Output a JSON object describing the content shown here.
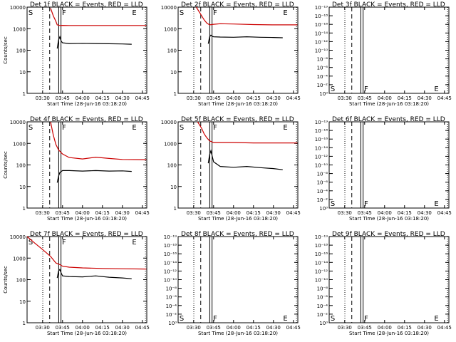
{
  "chart_data": [
    {
      "type": "line",
      "title": "Det 1f BLACK = Events, RED = LLD",
      "ylabel": "Counts/sec",
      "xlabel": "Start Time (28-Jun-16 03:18:20)",
      "xticks": [
        "03:30",
        "03:45",
        "04:00",
        "04:15",
        "04:30",
        "04:45"
      ],
      "yscale": "log",
      "yticks": [
        "1",
        "10",
        "100",
        "1000",
        "10000"
      ],
      "ylim": [
        1,
        10000
      ],
      "markers": [
        "S",
        "F",
        "E"
      ],
      "series": [
        {
          "name": "Events",
          "color": "#000000",
          "x": [
            "03:41",
            "03:42",
            "03:43",
            "03:44",
            "03:45",
            "03:50",
            "04:00",
            "04:10",
            "04:20",
            "04:30",
            "04:37"
          ],
          "y": [
            120,
            300,
            420,
            260,
            220,
            205,
            210,
            205,
            200,
            195,
            190
          ]
        },
        {
          "name": "LLD",
          "color": "#cc0000",
          "x": [
            "03:36",
            "03:38",
            "03:40",
            "03:41",
            "03:43",
            "03:45",
            "03:50",
            "04:00",
            "04:15",
            "04:30",
            "04:48"
          ],
          "y": [
            9000,
            4000,
            2200,
            1500,
            1400,
            1420,
            1400,
            1400,
            1400,
            1400,
            1400
          ]
        }
      ]
    },
    {
      "type": "line",
      "title": "Det 2f BLACK = Events, RED = LLD",
      "ylabel": "",
      "xlabel": "Start Time (28-Jun-16 03:18:20)",
      "xticks": [
        "03:30",
        "03:45",
        "04:00",
        "04:15",
        "04:30",
        "04:45"
      ],
      "yscale": "log",
      "yticks": [
        "1",
        "10",
        "100",
        "1000",
        "10000"
      ],
      "ylim": [
        1,
        10000
      ],
      "markers": [
        "S",
        "F",
        "E"
      ],
      "series": [
        {
          "name": "Events",
          "color": "#000000",
          "x": [
            "03:41",
            "03:42",
            "03:43",
            "03:44",
            "03:45",
            "03:50",
            "04:00",
            "04:10",
            "04:20",
            "04:30",
            "04:37"
          ],
          "y": [
            200,
            420,
            500,
            440,
            420,
            410,
            400,
            420,
            400,
            390,
            380
          ]
        },
        {
          "name": "LLD",
          "color": "#cc0000",
          "x": [
            "03:32",
            "03:35",
            "03:38",
            "03:40",
            "03:42",
            "03:45",
            "03:50",
            "04:00",
            "04:15",
            "04:30",
            "04:48"
          ],
          "y": [
            10000,
            5000,
            2500,
            1800,
            1500,
            1600,
            1700,
            1650,
            1550,
            1500,
            1500
          ]
        }
      ]
    },
    {
      "type": "line",
      "title": "Det 3f BLACK = Events, RED = LLD",
      "ylabel": "",
      "xlabel": "Start Time (28-Jun-16 03:18:20)",
      "xticks": [
        "03:30",
        "03:45",
        "04:00",
        "04:15",
        "04:30",
        "04:45"
      ],
      "yscale": "log",
      "yticks": [
        "10⁰",
        "10⁻²",
        "10⁻⁴",
        "10⁻⁶",
        "10⁻⁸",
        "10⁻¹⁰",
        "10⁻¹²",
        "10⁻¹⁴",
        "10⁻¹⁶",
        "10⁻¹⁸",
        "10⁻¹⁹"
      ],
      "markers": [
        "S",
        "F",
        "E"
      ],
      "series": []
    },
    {
      "type": "line",
      "title": "Det 4f BLACK = Events, RED = LLD",
      "ylabel": "Counts/sec",
      "xlabel": "Start Time (28-Jun-16 03:18:20)",
      "xticks": [
        "03:30",
        "03:45",
        "04:00",
        "04:15",
        "04:30",
        "04:45"
      ],
      "yscale": "log",
      "yticks": [
        "1",
        "10",
        "100",
        "1000",
        "10000"
      ],
      "ylim": [
        1,
        10000
      ],
      "markers": [
        "S",
        "F",
        "E"
      ],
      "series": [
        {
          "name": "Events",
          "color": "#000000",
          "x": [
            "03:41",
            "03:42",
            "03:43",
            "03:45",
            "03:50",
            "04:00",
            "04:10",
            "04:20",
            "04:30",
            "04:37"
          ],
          "y": [
            15,
            30,
            45,
            55,
            55,
            52,
            55,
            52,
            53,
            50
          ]
        },
        {
          "name": "LLD",
          "color": "#cc0000",
          "x": [
            "03:36",
            "03:38",
            "03:40",
            "03:42",
            "03:45",
            "03:50",
            "04:00",
            "04:10",
            "04:20",
            "04:30",
            "04:48"
          ],
          "y": [
            10000,
            2500,
            900,
            500,
            320,
            220,
            190,
            230,
            200,
            180,
            175
          ]
        }
      ]
    },
    {
      "type": "line",
      "title": "Det 5f BLACK = Events, RED = LLD",
      "ylabel": "",
      "xlabel": "Start Time (28-Jun-16 03:18:20)",
      "xticks": [
        "03:30",
        "03:45",
        "04:00",
        "04:15",
        "04:30",
        "04:45"
      ],
      "yscale": "log",
      "yticks": [
        "1",
        "10",
        "100",
        "1000",
        "10000"
      ],
      "ylim": [
        1,
        10000
      ],
      "markers": [
        "S",
        "F",
        "E"
      ],
      "series": [
        {
          "name": "Events",
          "color": "#000000",
          "x": [
            "03:41",
            "03:42",
            "03:43",
            "03:44",
            "03:45",
            "03:50",
            "04:00",
            "04:10",
            "04:20",
            "04:30",
            "04:37"
          ],
          "y": [
            120,
            300,
            450,
            250,
            140,
            85,
            78,
            85,
            75,
            68,
            60
          ]
        },
        {
          "name": "LLD",
          "color": "#cc0000",
          "x": [
            "03:33",
            "03:36",
            "03:38",
            "03:40",
            "03:42",
            "03:45",
            "03:50",
            "04:00",
            "04:15",
            "04:30",
            "04:48"
          ],
          "y": [
            10000,
            5000,
            2700,
            1800,
            1300,
            1100,
            1100,
            1100,
            1050,
            1050,
            1050
          ]
        }
      ]
    },
    {
      "type": "line",
      "title": "Det 6f BLACK = Events, RED = LLD",
      "ylabel": "",
      "xlabel": "Start Time (28-Jun-16 03:18:20)",
      "xticks": [
        "03:30",
        "03:45",
        "04:00",
        "04:15",
        "04:30",
        "04:45"
      ],
      "yscale": "log",
      "yticks": [
        "10⁰",
        "10⁻²",
        "10⁻⁴",
        "10⁻⁶",
        "10⁻⁸",
        "10⁻¹⁰",
        "10⁻¹²",
        "10⁻¹⁴",
        "10⁻¹⁶",
        "10⁻¹⁸",
        "10⁻¹⁹"
      ],
      "markers": [
        "S",
        "F",
        "E"
      ],
      "series": []
    },
    {
      "type": "line",
      "title": "Det 7f BLACK = Events, RED = LLD",
      "ylabel": "Counts/sec",
      "xlabel": "Start Time (28-Jun-16 03:18:20)",
      "xticks": [
        "03:30",
        "03:45",
        "04:00",
        "04:15",
        "04:30",
        "04:45"
      ],
      "yscale": "log",
      "yticks": [
        "1",
        "10",
        "100",
        "1000",
        "10000"
      ],
      "ylim": [
        1,
        10000
      ],
      "markers": [
        "S",
        "F",
        "E"
      ],
      "series": [
        {
          "name": "Events",
          "color": "#000000",
          "x": [
            "03:41",
            "03:42",
            "03:43",
            "03:44",
            "03:45",
            "03:50",
            "04:00",
            "04:10",
            "04:20",
            "04:30",
            "04:37"
          ],
          "y": [
            120,
            250,
            300,
            200,
            150,
            140,
            135,
            150,
            130,
            120,
            110
          ]
        },
        {
          "name": "LLD",
          "color": "#cc0000",
          "x": [
            "03:18",
            "03:24",
            "03:30",
            "03:36",
            "03:40",
            "03:43",
            "03:45",
            "03:50",
            "04:00",
            "04:15",
            "04:30",
            "04:48"
          ],
          "y": [
            10000,
            5000,
            2500,
            1200,
            600,
            500,
            420,
            380,
            350,
            330,
            320,
            310
          ]
        }
      ]
    },
    {
      "type": "line",
      "title": "Det 8f BLACK = Events, RED = LLD",
      "ylabel": "",
      "xlabel": "Start Time (28-Jun-16 03:18:20)",
      "xticks": [
        "03:30",
        "03:45",
        "04:00",
        "04:15",
        "04:30",
        "04:45"
      ],
      "yscale": "log",
      "yticks": [
        "10⁰",
        "10⁻²",
        "10⁻⁴",
        "10⁻⁶",
        "10⁻⁸",
        "10⁻¹⁰",
        "10⁻¹²",
        "10⁻¹⁴",
        "10⁻¹⁶",
        "10⁻¹⁸",
        "10⁻¹⁹"
      ],
      "markers": [
        "S",
        "F",
        "E"
      ],
      "series": []
    },
    {
      "type": "line",
      "title": "Det 9f BLACK = Events, RED = LLD",
      "ylabel": "",
      "xlabel": "Start Time (28-Jun-16 03:18:20)",
      "xticks": [
        "03:30",
        "03:45",
        "04:00",
        "04:15",
        "04:30",
        "04:45"
      ],
      "yscale": "log",
      "yticks": [
        "10⁰",
        "10⁻²",
        "10⁻⁴",
        "10⁻⁶",
        "10⁻⁸",
        "10⁻¹⁰",
        "10⁻¹²",
        "10⁻¹⁴",
        "10⁻¹⁶",
        "10⁻¹⁸",
        "10⁻¹⁹"
      ],
      "markers": [
        "S",
        "F",
        "E"
      ],
      "series": []
    }
  ]
}
